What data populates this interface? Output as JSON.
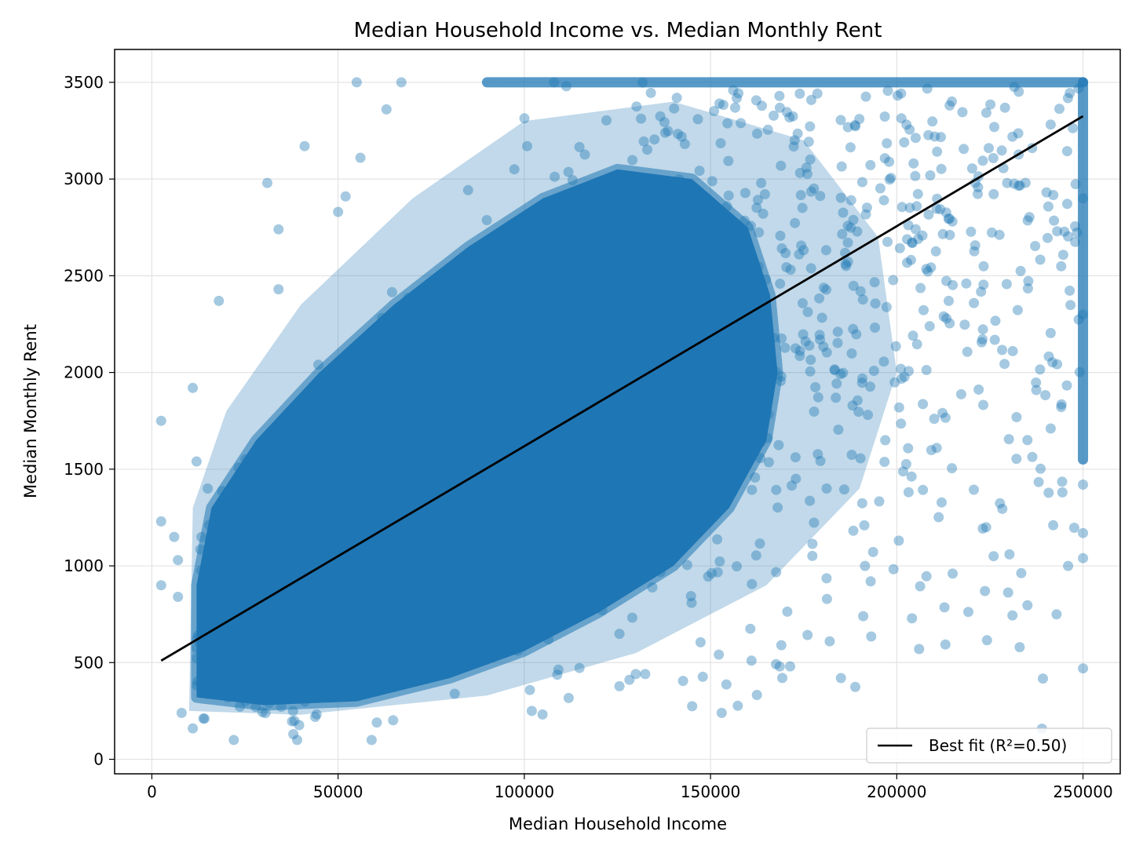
{
  "chart_data": {
    "type": "scatter",
    "title": "Median Household Income vs. Median Monthly Rent",
    "xlabel": "Median Household Income",
    "ylabel": "Median Monthly Rent",
    "xlim": [
      -10000,
      260000
    ],
    "ylim": [
      -75,
      3670
    ],
    "xticks": [
      0,
      50000,
      100000,
      150000,
      200000,
      250000
    ],
    "yticks": [
      0,
      500,
      1000,
      1500,
      2000,
      2500,
      3000,
      3500
    ],
    "xtick_labels": [
      "0",
      "50000",
      "100000",
      "150000",
      "200000",
      "250000"
    ],
    "ytick_labels": [
      "0",
      "500",
      "1000",
      "1500",
      "2000",
      "2500",
      "3000",
      "3500"
    ],
    "grid": true,
    "series": [
      {
        "kind": "points",
        "color": "#1f77b4",
        "alpha": 0.4,
        "caps": {
          "income_max": 250000,
          "rent_max": 3500
        },
        "sample_points": [
          [
            2500,
            1750
          ],
          [
            2500,
            1230
          ],
          [
            2500,
            900
          ],
          [
            6000,
            1150
          ],
          [
            7000,
            1030
          ],
          [
            7000,
            840
          ],
          [
            8000,
            240
          ],
          [
            11000,
            1920
          ],
          [
            11000,
            160
          ],
          [
            12000,
            1540
          ],
          [
            15000,
            1400
          ],
          [
            18000,
            2370
          ],
          [
            22000,
            100
          ],
          [
            31000,
            2980
          ],
          [
            34000,
            2740
          ],
          [
            34000,
            2430
          ],
          [
            38000,
            130
          ],
          [
            39000,
            100
          ],
          [
            41000,
            3170
          ],
          [
            50000,
            2830
          ],
          [
            52000,
            2910
          ],
          [
            55000,
            3500
          ],
          [
            56000,
            3110
          ],
          [
            59000,
            100
          ],
          [
            63000,
            3360
          ],
          [
            67000,
            3500
          ],
          [
            102000,
            250
          ],
          [
            108000,
            3500
          ],
          [
            153000,
            240
          ],
          [
            161000,
            510
          ],
          [
            169000,
            590
          ],
          [
            182000,
            610
          ],
          [
            185000,
            420
          ],
          [
            191000,
            740
          ],
          [
            193000,
            920
          ],
          [
            206000,
            570
          ],
          [
            215000,
            960
          ],
          [
            224000,
            1200
          ],
          [
            226000,
            1050
          ],
          [
            233000,
            580
          ],
          [
            242000,
            1210
          ],
          [
            246000,
            1000
          ],
          [
            250000,
            470
          ],
          [
            250000,
            1040
          ],
          [
            250000,
            1170
          ],
          [
            250000,
            1420
          ],
          [
            250000,
            2300
          ],
          [
            250000,
            2900
          ]
        ]
      },
      {
        "name": "Best fit (R²=0.50)",
        "kind": "line",
        "color": "#000000",
        "x": [
          2500,
          250000
        ],
        "y": [
          510,
          3325
        ]
      }
    ],
    "legend": {
      "position": "lower-right",
      "label": "Best fit (R²=0.50)"
    }
  }
}
